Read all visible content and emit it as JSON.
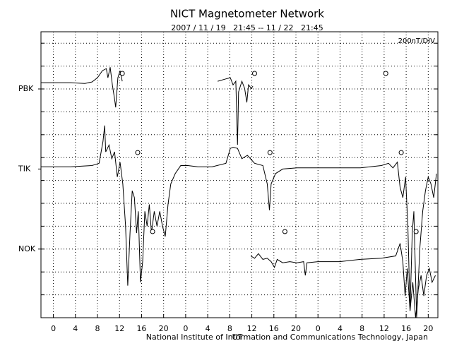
{
  "chart_data": {
    "type": "line",
    "title": "NICT Magnetometer Network",
    "subtitle": "2007 / 11 / 19   21:45 -- 11 / 22   21:45",
    "scale_note": "200nT/DIV",
    "x_label": "UT",
    "footer": "National Institute of Information and Communications Technology, Japan",
    "xlim": [
      -2.25,
      69.75
    ],
    "xticks": [
      0,
      4,
      8,
      12,
      16,
      20,
      {
        "value": 24,
        "label": "0"
      },
      {
        "value": 28,
        "label": "4"
      },
      {
        "value": 32,
        "label": "8"
      },
      {
        "value": 36,
        "label": "12"
      },
      {
        "value": 40,
        "label": "16"
      },
      {
        "value": 44,
        "label": "20"
      },
      {
        "value": 48,
        "label": "0"
      },
      {
        "value": 52,
        "label": "4"
      },
      {
        "value": 56,
        "label": "8"
      },
      {
        "value": 60,
        "label": "12"
      },
      {
        "value": 64,
        "label": "16"
      },
      {
        "value": 68,
        "label": "20"
      }
    ],
    "ylim": [
      0,
      2500
    ],
    "yticks": [
      {
        "value": 2000,
        "label": "PBK"
      },
      {
        "value": 1300,
        "label": "TIK"
      },
      {
        "value": 600,
        "label": "NOK"
      }
    ],
    "ygrid": [
      200,
      400,
      600,
      800,
      1000,
      1200,
      1400,
      1600,
      1800,
      2000,
      2200,
      2400
    ],
    "grid": true,
    "series": [
      {
        "color": "#000000",
        "x": [
          -2.25,
          0.6,
          3.1,
          5.7,
          7.0,
          8.0,
          8.9,
          9.6,
          9.9,
          10.3,
          10.7,
          11.1,
          11.3,
          11.7,
          12.1,
          12.5,
          20,
          29.8,
          31.1,
          32.1,
          32.6,
          33.1,
          33.4,
          33.6,
          34.2,
          34.7,
          35.1,
          35.4,
          35.9,
          36.2
        ],
        "values": [
          2055,
          2055,
          2055,
          2048,
          2061,
          2098,
          2160,
          2178,
          2098,
          2190,
          2036,
          1913,
          1839,
          2098,
          2160,
          2067,
          null,
          2067,
          2085,
          2098,
          2036,
          2067,
          1512,
          1974,
          2067,
          2005,
          1882,
          2036,
          2005,
          2024
        ]
      },
      {
        "color": "#000000",
        "x": [
          -2.25,
          3.1,
          7.0,
          8.3,
          9.0,
          9.3,
          9.5,
          10.1,
          10.6,
          11.1,
          11.6,
          12.1,
          12.6,
          13.1,
          13.5,
          13.9,
          14.3,
          14.7,
          15.1,
          15.4,
          15.8,
          16.2,
          16.6,
          17.0,
          17.4,
          17.8,
          18.3,
          18.8,
          19.3,
          19.8,
          20.3,
          20.8,
          21.3,
          22.1,
          23.1,
          24.4,
          26.2,
          28.8,
          31.3,
          32.1,
          32.6,
          33.4,
          34.2,
          35.2,
          36.5,
          38.0,
          38.8,
          39.2,
          39.5,
          40.3,
          41.6,
          44.2,
          48.0,
          51.9,
          55.7,
          59.5,
          60.8,
          61.6,
          62.4,
          62.9,
          63.4,
          63.9,
          64.3,
          64.7,
          65.1,
          65.4,
          65.9,
          66.5,
          67.0,
          67.5,
          68.0,
          68.5,
          69.0,
          69.5
        ],
        "values": [
          1320,
          1320,
          1330,
          1350,
          1540,
          1680,
          1450,
          1510,
          1390,
          1450,
          1230,
          1360,
          1170,
          800,
          280,
          740,
          1110,
          1050,
          740,
          930,
          310,
          490,
          930,
          800,
          990,
          740,
          930,
          800,
          930,
          800,
          710,
          990,
          1170,
          1260,
          1330,
          1330,
          1320,
          1320,
          1350,
          1480,
          1490,
          1480,
          1390,
          1420,
          1350,
          1330,
          1170,
          940,
          1170,
          1260,
          1300,
          1310,
          1310,
          1310,
          1310,
          1330,
          1350,
          1310,
          1360,
          1140,
          1050,
          1230,
          800,
          60,
          740,
          930,
          0,
          620,
          930,
          1110,
          1230,
          1170,
          1050,
          1260
        ]
      },
      {
        "color": "#000000",
        "x": [
          35.8,
          36.5,
          37.2,
          38.0,
          38.8,
          39.5,
          40.1,
          40.6,
          41.6,
          42.9,
          44.2,
          45.4,
          45.7,
          46.0,
          48.0,
          51.9,
          55.7,
          59.5,
          62.1,
          62.9,
          63.4,
          63.8,
          64.2,
          64.7,
          65.2,
          65.7,
          66.2,
          66.7,
          67.2,
          67.7,
          68.2,
          68.7,
          69.3
        ],
        "values": [
          540,
          520,
          560,
          510,
          520,
          490,
          440,
          510,
          480,
          490,
          480,
          490,
          370,
          480,
          490,
          490,
          510,
          520,
          540,
          650,
          490,
          190,
          430,
          60,
          310,
          0,
          250,
          370,
          190,
          370,
          430,
          310,
          370
        ]
      }
    ],
    "markers": [
      {
        "x": 12.5,
        "y": 2136
      },
      {
        "x": 36.5,
        "y": 2136
      },
      {
        "x": 60.3,
        "y": 2136
      },
      {
        "x": 15.3,
        "y": 1444
      },
      {
        "x": 39.3,
        "y": 1444
      },
      {
        "x": 63.1,
        "y": 1444
      },
      {
        "x": 18.0,
        "y": 753
      },
      {
        "x": 42.0,
        "y": 753
      },
      {
        "x": 65.8,
        "y": 753
      }
    ]
  }
}
